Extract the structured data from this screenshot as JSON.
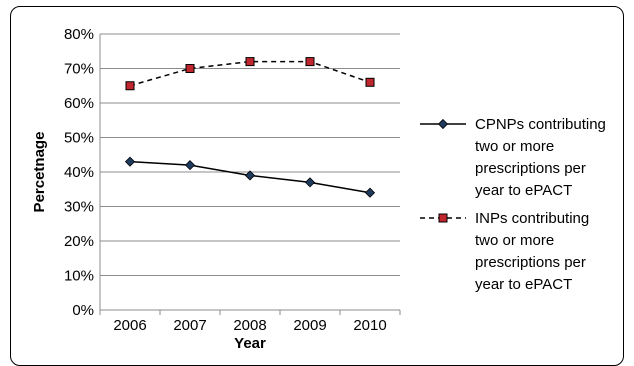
{
  "chart_data": {
    "type": "line",
    "categories": [
      "2006",
      "2007",
      "2008",
      "2009",
      "2010"
    ],
    "xlabel": "Year",
    "ylabel": "Percetnage",
    "ylim": [
      0,
      80
    ],
    "yticks": [
      "0%",
      "10%",
      "20%",
      "30%",
      "40%",
      "50%",
      "60%",
      "70%",
      "80%"
    ],
    "grid": true,
    "legend_position": "right",
    "series": [
      {
        "name_lines": [
          "CPNPs contributing",
          "two or more",
          "prescriptions per",
          "year to ePACT"
        ],
        "values": [
          43,
          42,
          39,
          37,
          34
        ],
        "line_style": "solid",
        "marker": "diamond",
        "line_color": "#000000",
        "marker_color": "#1f3a5f"
      },
      {
        "name_lines": [
          "INPs contributing",
          "two or more",
          "prescriptions per",
          "year to ePACT"
        ],
        "values": [
          65,
          70,
          72,
          72,
          66
        ],
        "line_style": "dashed",
        "marker": "square",
        "line_color": "#000000",
        "marker_color": "#c0262d"
      }
    ]
  }
}
